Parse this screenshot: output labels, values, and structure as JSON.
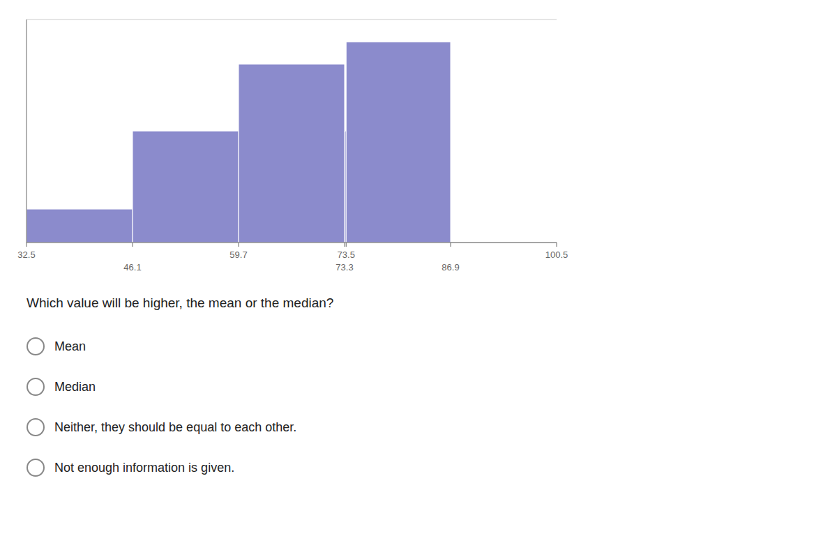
{
  "chart_data": {
    "type": "histogram",
    "bins": [
      32.5,
      46.1,
      59.7,
      73.3,
      73.5,
      86.9,
      100.5
    ],
    "values": [
      1.5,
      5,
      8,
      5,
      9,
      0
    ],
    "color": "#8b8bcc",
    "xlim": [
      32.5,
      100.5
    ],
    "xticks": [
      32.5,
      46.1,
      59.7,
      73.3,
      73.5,
      86.9,
      100.5
    ],
    "ylim": [
      0,
      10
    ],
    "yticks": [
      0,
      2,
      4,
      6,
      8,
      10
    ],
    "grid": true,
    "tick_labels": "x",
    "annotations": [
      "Which value will be higher, the mean or the median?",
      "Mean",
      "Median",
      "Neither, they should be equal to each other.",
      "Not enough information is given."
    ]
  }
}
